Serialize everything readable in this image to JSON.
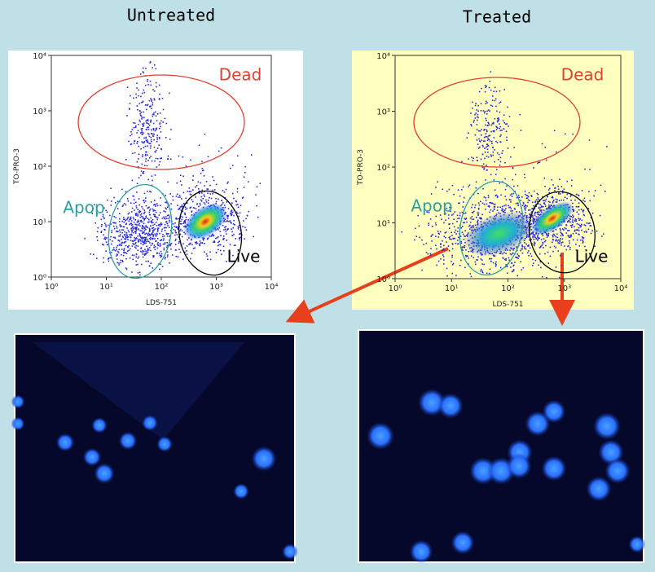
{
  "panels": [
    {
      "title": "Untreated",
      "x_label": "LDS-751",
      "y_label": "TO-PRO-3",
      "x_ticks": [
        "10⁰",
        "10¹",
        "10²",
        "10³",
        "10⁴"
      ],
      "y_ticks": [
        "10⁰",
        "10¹",
        "10²",
        "10³",
        "10⁴"
      ],
      "gates": [
        "Dead",
        "Apop",
        "Live"
      ]
    },
    {
      "title": "Treated",
      "x_label": "LDS-751",
      "y_label": "TO-PRO-3",
      "x_ticks": [
        "10⁰",
        "10¹",
        "10²",
        "10³",
        "10⁴"
      ],
      "y_ticks": [
        "10⁰",
        "10¹",
        "10²",
        "10³",
        "10⁴"
      ],
      "gates": [
        "Dead",
        "Apop",
        "Live"
      ]
    }
  ]
}
